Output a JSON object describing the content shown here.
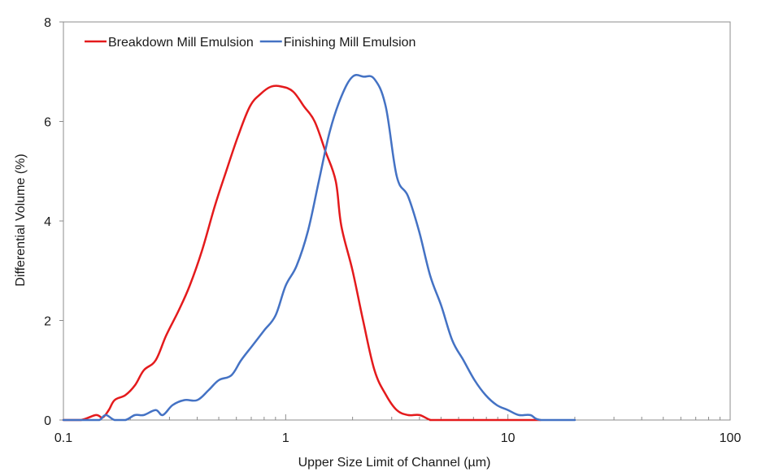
{
  "chart_data": {
    "type": "line",
    "title": "",
    "xlabel": "Upper Size Limit of Channel (µm)",
    "ylabel": "Differential Volume (%)",
    "xscale": "log",
    "xlim": [
      0.1,
      100
    ],
    "ylim": [
      0,
      8
    ],
    "x_ticks": [
      {
        "value": 0.1,
        "label": "0.1"
      },
      {
        "value": 1,
        "label": "1"
      },
      {
        "value": 10,
        "label": "10"
      },
      {
        "value": 100,
        "label": "100"
      }
    ],
    "y_ticks": [
      {
        "value": 0,
        "label": "0"
      },
      {
        "value": 2,
        "label": "2"
      },
      {
        "value": 4,
        "label": "4"
      },
      {
        "value": 6,
        "label": "6"
      },
      {
        "value": 8,
        "label": "8"
      }
    ],
    "grid": false,
    "legend_position": "top-left",
    "series": [
      {
        "name": "Breakdown Mill Emulsion",
        "color": "#e41a1c",
        "points": [
          [
            0.1,
            0.0
          ],
          [
            0.12,
            0.0
          ],
          [
            0.14,
            0.1
          ],
          [
            0.15,
            0.05
          ],
          [
            0.16,
            0.2
          ],
          [
            0.17,
            0.4
          ],
          [
            0.19,
            0.5
          ],
          [
            0.21,
            0.7
          ],
          [
            0.23,
            1.0
          ],
          [
            0.26,
            1.2
          ],
          [
            0.29,
            1.7
          ],
          [
            0.33,
            2.2
          ],
          [
            0.37,
            2.7
          ],
          [
            0.42,
            3.4
          ],
          [
            0.48,
            4.3
          ],
          [
            0.54,
            5.0
          ],
          [
            0.61,
            5.7
          ],
          [
            0.69,
            6.3
          ],
          [
            0.77,
            6.55
          ],
          [
            0.86,
            6.7
          ],
          [
            0.96,
            6.7
          ],
          [
            1.08,
            6.6
          ],
          [
            1.21,
            6.3
          ],
          [
            1.35,
            6.0
          ],
          [
            1.51,
            5.4
          ],
          [
            1.68,
            4.8
          ],
          [
            1.78,
            3.9
          ],
          [
            2.0,
            3.0
          ],
          [
            2.23,
            2.0
          ],
          [
            2.51,
            1.0
          ],
          [
            2.83,
            0.5
          ],
          [
            3.16,
            0.2
          ],
          [
            3.55,
            0.1
          ],
          [
            4.0,
            0.1
          ],
          [
            4.5,
            0.0
          ],
          [
            5.0,
            0.0
          ],
          [
            14.0,
            0.0
          ]
        ]
      },
      {
        "name": "Finishing Mill Emulsion",
        "color": "#4472c4",
        "points": [
          [
            0.1,
            0.0
          ],
          [
            0.13,
            0.0
          ],
          [
            0.145,
            0.0
          ],
          [
            0.155,
            0.1
          ],
          [
            0.17,
            0.0
          ],
          [
            0.19,
            0.0
          ],
          [
            0.21,
            0.1
          ],
          [
            0.23,
            0.1
          ],
          [
            0.26,
            0.2
          ],
          [
            0.28,
            0.1
          ],
          [
            0.31,
            0.3
          ],
          [
            0.35,
            0.4
          ],
          [
            0.4,
            0.4
          ],
          [
            0.45,
            0.6
          ],
          [
            0.5,
            0.8
          ],
          [
            0.57,
            0.9
          ],
          [
            0.63,
            1.2
          ],
          [
            0.71,
            1.5
          ],
          [
            0.8,
            1.8
          ],
          [
            0.9,
            2.1
          ],
          [
            1.0,
            2.7
          ],
          [
            1.12,
            3.1
          ],
          [
            1.26,
            3.8
          ],
          [
            1.41,
            4.8
          ],
          [
            1.58,
            5.8
          ],
          [
            1.78,
            6.5
          ],
          [
            2.0,
            6.9
          ],
          [
            2.24,
            6.9
          ],
          [
            2.51,
            6.85
          ],
          [
            2.82,
            6.3
          ],
          [
            3.16,
            4.9
          ],
          [
            3.55,
            4.5
          ],
          [
            3.98,
            3.8
          ],
          [
            4.47,
            2.9
          ],
          [
            5.01,
            2.3
          ],
          [
            5.62,
            1.6
          ],
          [
            6.31,
            1.2
          ],
          [
            7.08,
            0.8
          ],
          [
            7.94,
            0.5
          ],
          [
            8.91,
            0.3
          ],
          [
            10.0,
            0.2
          ],
          [
            11.2,
            0.1
          ],
          [
            12.6,
            0.1
          ],
          [
            14.1,
            0.0
          ],
          [
            20.0,
            0.0
          ]
        ]
      }
    ]
  }
}
